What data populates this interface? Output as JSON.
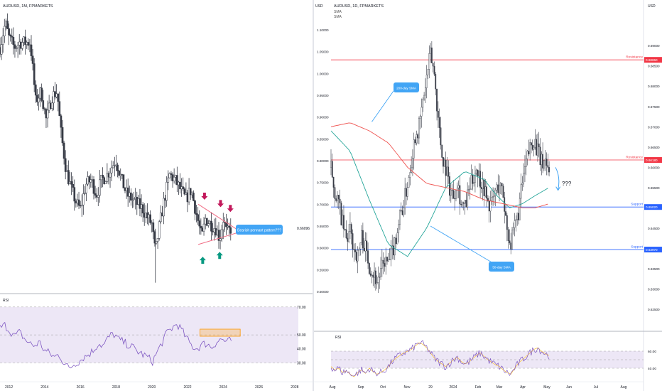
{
  "chart_data": [
    {
      "type": "candlestick",
      "title": "AUDUSD, 1M, FPMARKETS",
      "currency": "USD",
      "x_tick_labels": [
        "2012",
        "2014",
        "2016",
        "2018",
        "2020",
        "2022",
        "2024",
        "2026",
        "2028"
      ],
      "x_range_years": [
        2011.5,
        2029.0
      ],
      "price_range": [
        0.535,
        1.115
      ],
      "price_axis": {
        "tick_labels": [],
        "current_price_label": "0.66096"
      },
      "price_monthly": [
        {
          "year": 2011.5,
          "value": 1.03
        },
        {
          "year": 2011.8,
          "value": 1.08
        },
        {
          "year": 2012.0,
          "value": 1.05
        },
        {
          "year": 2012.3,
          "value": 1.03
        },
        {
          "year": 2012.6,
          "value": 1.04
        },
        {
          "year": 2012.9,
          "value": 1.04
        },
        {
          "year": 2013.2,
          "value": 1.04
        },
        {
          "year": 2013.5,
          "value": 0.92
        },
        {
          "year": 2013.8,
          "value": 0.94
        },
        {
          "year": 2014.1,
          "value": 0.88
        },
        {
          "year": 2014.4,
          "value": 0.93
        },
        {
          "year": 2014.7,
          "value": 0.94
        },
        {
          "year": 2014.9,
          "value": 0.86
        },
        {
          "year": 2015.2,
          "value": 0.78
        },
        {
          "year": 2015.5,
          "value": 0.74
        },
        {
          "year": 2015.8,
          "value": 0.71
        },
        {
          "year": 2016.0,
          "value": 0.7
        },
        {
          "year": 2016.3,
          "value": 0.75
        },
        {
          "year": 2016.6,
          "value": 0.76
        },
        {
          "year": 2016.9,
          "value": 0.73
        },
        {
          "year": 2017.2,
          "value": 0.76
        },
        {
          "year": 2017.5,
          "value": 0.77
        },
        {
          "year": 2017.8,
          "value": 0.79
        },
        {
          "year": 2018.0,
          "value": 0.8
        },
        {
          "year": 2018.3,
          "value": 0.76
        },
        {
          "year": 2018.6,
          "value": 0.73
        },
        {
          "year": 2018.9,
          "value": 0.72
        },
        {
          "year": 2019.2,
          "value": 0.71
        },
        {
          "year": 2019.5,
          "value": 0.7
        },
        {
          "year": 2019.8,
          "value": 0.68
        },
        {
          "year": 2020.0,
          "value": 0.67
        },
        {
          "year": 2020.2,
          "value": 0.61
        },
        {
          "year": 2020.4,
          "value": 0.66
        },
        {
          "year": 2020.7,
          "value": 0.72
        },
        {
          "year": 2021.0,
          "value": 0.77
        },
        {
          "year": 2021.3,
          "value": 0.76
        },
        {
          "year": 2021.6,
          "value": 0.74
        },
        {
          "year": 2021.9,
          "value": 0.72
        },
        {
          "year": 2022.2,
          "value": 0.74
        },
        {
          "year": 2022.5,
          "value": 0.69
        },
        {
          "year": 2022.8,
          "value": 0.64
        },
        {
          "year": 2023.0,
          "value": 0.68
        },
        {
          "year": 2023.3,
          "value": 0.67
        },
        {
          "year": 2023.6,
          "value": 0.66
        },
        {
          "year": 2023.8,
          "value": 0.64
        },
        {
          "year": 2024.0,
          "value": 0.68
        },
        {
          "year": 2024.2,
          "value": 0.65
        },
        {
          "year": 2024.4,
          "value": 0.66
        }
      ],
      "annotations": {
        "callout_text": "Bearish pennant pattern???",
        "red_arrows": 3,
        "green_arrows": 2
      },
      "rsi": {
        "label": "RSI",
        "tick_labels": [
          "70.00",
          "50.00",
          "40.00",
          "30.00"
        ],
        "range": [
          20,
          75
        ],
        "levels": [
          30,
          50,
          70
        ],
        "values": [
          55,
          57,
          53,
          49,
          52,
          47,
          44,
          42,
          45,
          39,
          37,
          34,
          36,
          30,
          26,
          29,
          31,
          34,
          36,
          39,
          44,
          42,
          48,
          51,
          47,
          45,
          43,
          41,
          38,
          36,
          34,
          31,
          38,
          45,
          52,
          55,
          58,
          53,
          47,
          42,
          40,
          43,
          44,
          41,
          45,
          47,
          45,
          46
        ]
      },
      "colors": {
        "candle_up": "#363a45",
        "candle_down": "#363a45",
        "pennant_lines": "#f06d85",
        "bear_arrow": "#c2185b",
        "bull_arrow": "#089981",
        "callout": "#42a5f5",
        "rsi_line": "#7e57c2",
        "rsi_band": "#ede7f6",
        "rsi_box": "#ff9800"
      }
    },
    {
      "type": "candlestick",
      "title": "AUDUSD, 1D, FPMARKETS",
      "legend": [
        "SMA",
        "SMA"
      ],
      "currency": "USD",
      "x_tick_labels": [
        "Aug",
        "Sep",
        "Oct",
        "Nov",
        "29",
        "2024",
        "Feb",
        "Mar",
        "Apr",
        "May",
        "Jun",
        "Jul",
        "Aug"
      ],
      "price_range": [
        0.622,
        0.696
      ],
      "left_scale_labels": [
        "1.10000",
        "1.05000",
        "1.00000",
        "0.95000",
        "0.90000",
        "0.85000",
        "0.80000",
        "0.75000",
        "0.70000",
        "0.65000",
        "0.60000",
        "0.55000",
        "0.50000"
      ],
      "right_scale_labels": [
        "0.69000",
        "0.68500",
        "0.68000",
        "0.67500",
        "0.67000",
        "0.66500",
        "0.66000",
        "0.65500",
        "0.65000",
        "0.64500",
        "0.64000",
        "0.63500",
        "0.63000",
        "0.62500"
      ],
      "horizontal_levels": [
        {
          "label": "Resistance",
          "value": 0.6865,
          "price_label": "0.68650",
          "color": "#f23645"
        },
        {
          "label": "Resistance",
          "value": 0.6618,
          "price_label": "0.66180",
          "color": "#f23645"
        },
        {
          "label": "Support",
          "value": 0.6502,
          "price_label": "0.65020",
          "color": "#2962ff"
        },
        {
          "label": "Support",
          "value": 0.6397,
          "price_label": "0.63970",
          "color": "#2962ff"
        }
      ],
      "annotations": {
        "sma200_callout": "200-day SMA",
        "sma50_callout": "50-day SMA",
        "question_marks": "???"
      },
      "price_daily_path": [
        [
          0,
          0.66
        ],
        [
          3,
          0.654
        ],
        [
          6,
          0.651
        ],
        [
          9,
          0.646
        ],
        [
          12,
          0.642
        ],
        [
          15,
          0.644
        ],
        [
          18,
          0.64
        ],
        [
          21,
          0.638
        ],
        [
          24,
          0.643
        ],
        [
          27,
          0.64
        ],
        [
          30,
          0.636
        ],
        [
          33,
          0.634
        ],
        [
          36,
          0.632
        ],
        [
          39,
          0.634
        ],
        [
          42,
          0.637
        ],
        [
          45,
          0.636
        ],
        [
          48,
          0.639
        ],
        [
          51,
          0.643
        ],
        [
          54,
          0.648
        ],
        [
          57,
          0.651
        ],
        [
          60,
          0.656
        ],
        [
          63,
          0.662
        ],
        [
          66,
          0.668
        ],
        [
          69,
          0.67
        ],
        [
          72,
          0.676
        ],
        [
          75,
          0.682
        ],
        [
          78,
          0.688
        ],
        [
          81,
          0.683
        ],
        [
          84,
          0.672
        ],
        [
          87,
          0.663
        ],
        [
          90,
          0.66
        ],
        [
          93,
          0.655
        ],
        [
          96,
          0.653
        ],
        [
          99,
          0.657
        ],
        [
          102,
          0.651
        ],
        [
          105,
          0.65
        ],
        [
          108,
          0.654
        ],
        [
          111,
          0.657
        ],
        [
          114,
          0.66
        ],
        [
          117,
          0.657
        ],
        [
          120,
          0.655
        ],
        [
          123,
          0.651
        ],
        [
          126,
          0.651
        ],
        [
          129,
          0.654
        ],
        [
          132,
          0.656
        ],
        [
          135,
          0.653
        ],
        [
          138,
          0.645
        ],
        [
          141,
          0.641
        ],
        [
          144,
          0.645
        ],
        [
          147,
          0.649
        ],
        [
          150,
          0.656
        ],
        [
          153,
          0.661
        ],
        [
          156,
          0.665
        ],
        [
          159,
          0.667
        ],
        [
          162,
          0.664
        ],
        [
          165,
          0.661
        ],
        [
          168,
          0.662
        ],
        [
          171,
          0.659
        ]
      ],
      "sma50": [
        [
          0,
          0.669
        ],
        [
          15,
          0.664
        ],
        [
          30,
          0.652
        ],
        [
          45,
          0.641
        ],
        [
          60,
          0.638
        ],
        [
          75,
          0.645
        ],
        [
          90,
          0.655
        ],
        [
          105,
          0.659
        ],
        [
          120,
          0.657
        ],
        [
          130,
          0.653
        ],
        [
          140,
          0.65
        ],
        [
          150,
          0.651
        ],
        [
          160,
          0.653
        ],
        [
          171,
          0.655
        ]
      ],
      "sma200": [
        [
          0,
          0.67
        ],
        [
          15,
          0.671
        ],
        [
          30,
          0.669
        ],
        [
          45,
          0.666
        ],
        [
          60,
          0.66
        ],
        [
          75,
          0.656
        ],
        [
          90,
          0.655
        ],
        [
          105,
          0.654
        ],
        [
          120,
          0.652
        ],
        [
          135,
          0.651
        ],
        [
          150,
          0.65
        ],
        [
          160,
          0.65
        ],
        [
          171,
          0.651
        ]
      ],
      "rsi": {
        "label": "RSI",
        "tick_labels": [
          "60.00",
          "40.00"
        ],
        "range": [
          30,
          75
        ],
        "levels": [
          40,
          50,
          60
        ],
        "values": [
          42,
          38,
          40,
          35,
          37,
          33,
          30,
          35,
          38,
          34,
          40,
          36,
          33,
          35,
          38,
          42,
          48,
          52,
          55,
          58,
          60,
          62,
          66,
          70,
          68,
          64,
          58,
          52,
          48,
          45,
          42,
          46,
          50,
          53,
          48,
          45,
          47,
          51,
          55,
          58,
          54,
          50,
          47,
          44,
          42,
          38,
          35,
          33,
          40,
          46,
          50,
          54,
          58,
          62,
          64,
          60,
          57,
          55
        ]
      },
      "colors": {
        "candle": "#363a45",
        "sma50": "#26a69a",
        "sma200": "#ef5350",
        "resistance": "#f23645",
        "support": "#2962ff",
        "callout": "#42a5f5",
        "rsi_line": "#7e57c2",
        "rsi_ma": "#fbc02d",
        "rsi_band": "#ede7f6"
      }
    }
  ]
}
